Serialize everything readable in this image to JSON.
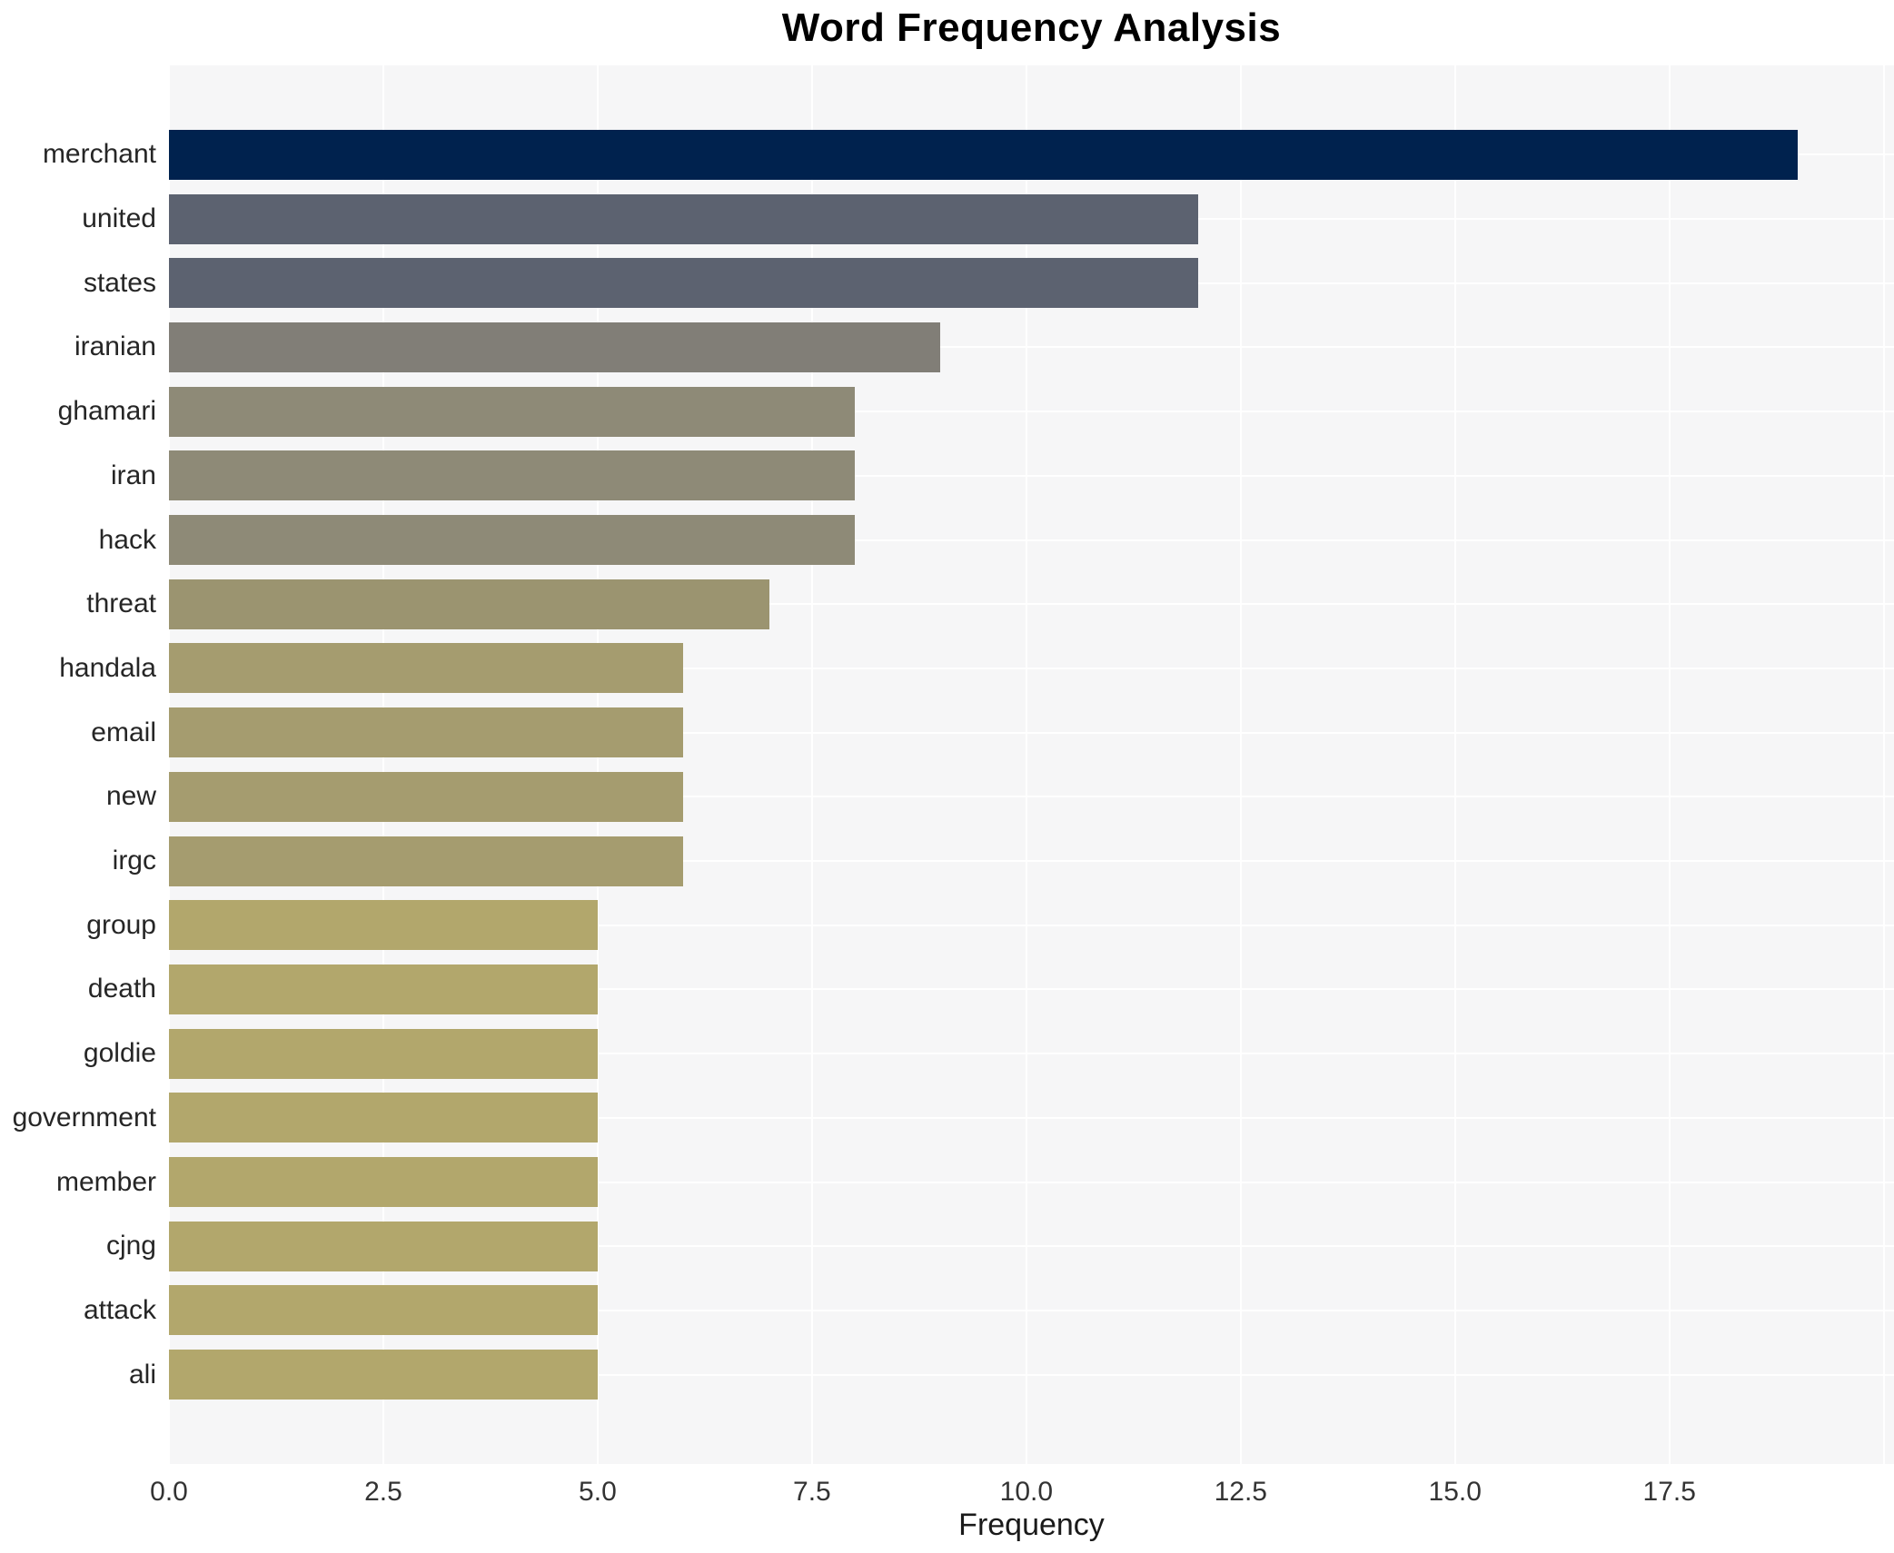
{
  "chart_data": {
    "type": "bar",
    "orientation": "horizontal",
    "title": "Word Frequency Analysis",
    "xlabel": "Frequency",
    "ylabel": "",
    "categories": [
      "merchant",
      "united",
      "states",
      "iranian",
      "ghamari",
      "iran",
      "hack",
      "threat",
      "handala",
      "email",
      "new",
      "irgc",
      "group",
      "death",
      "goldie",
      "government",
      "member",
      "cjng",
      "attack",
      "ali"
    ],
    "values": [
      19,
      12,
      12,
      9,
      8,
      8,
      8,
      7,
      6,
      6,
      6,
      6,
      5,
      5,
      5,
      5,
      5,
      5,
      5,
      5
    ],
    "bar_colors": [
      "#00224e",
      "#5c6270",
      "#5c6270",
      "#817e77",
      "#8e8a77",
      "#8e8a77",
      "#8e8a77",
      "#9b9470",
      "#a59c6f",
      "#a59c6f",
      "#a59c6f",
      "#a59c6f",
      "#b2a76c",
      "#b2a76c",
      "#b2a76c",
      "#b2a76c",
      "#b2a76c",
      "#b2a76c",
      "#b2a76c",
      "#b2a76c"
    ],
    "xlim": [
      0,
      20.12
    ],
    "xticks": [
      0.0,
      2.5,
      5.0,
      7.5,
      10.0,
      12.5,
      15.0,
      17.5
    ],
    "xtick_labels": [
      "0.0",
      "2.5",
      "5.0",
      "7.5",
      "10.0",
      "12.5",
      "15.0",
      "17.5"
    ],
    "grid_xticks": [
      0,
      2.5,
      5,
      7.5,
      10,
      12.5,
      15,
      17.5,
      20
    ],
    "grid": true,
    "legend_position": "none",
    "plot_background": "#f6f6f7",
    "grid_color": "#ffffff",
    "page_background": "#ffffff"
  }
}
